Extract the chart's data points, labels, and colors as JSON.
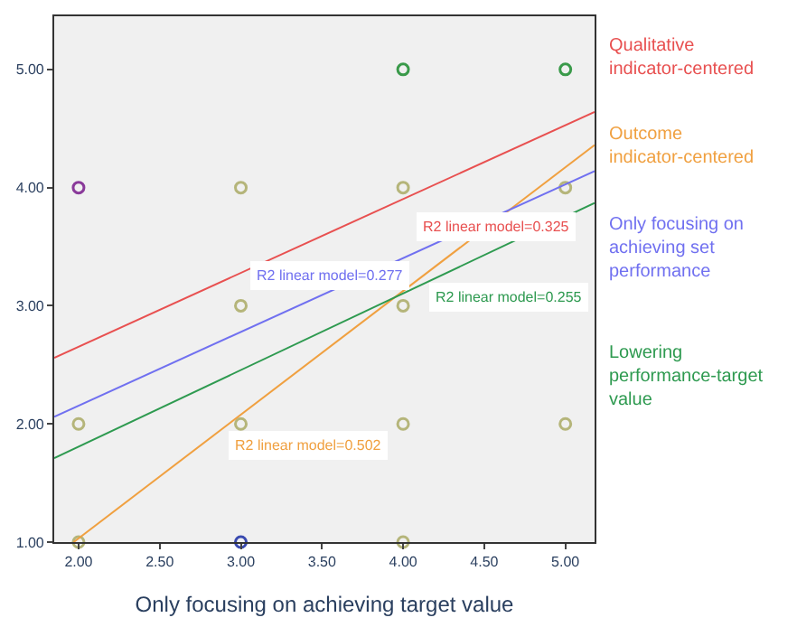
{
  "chart_data": {
    "type": "scatter",
    "xlabel": "Only focusing on achieving target value",
    "xlim": [
      1.85,
      5.18
    ],
    "ylim": [
      1.0,
      5.45
    ],
    "xticks": [
      {
        "value": 2,
        "label": "2.00"
      },
      {
        "value": 2.5,
        "label": "2.50"
      },
      {
        "value": 3,
        "label": "3.00"
      },
      {
        "value": 3.5,
        "label": "3.50"
      },
      {
        "value": 4,
        "label": "4.00"
      },
      {
        "value": 4.5,
        "label": "4.50"
      },
      {
        "value": 5,
        "label": "5.00"
      }
    ],
    "yticks": [
      {
        "value": 1,
        "label": "1.00"
      },
      {
        "value": 2,
        "label": "2.00"
      },
      {
        "value": 3,
        "label": "3.00"
      },
      {
        "value": 4,
        "label": "4.00"
      },
      {
        "value": 5,
        "label": "5.00"
      }
    ],
    "grid": false,
    "legend": "right",
    "series": [
      {
        "marker": "circle",
        "x": [
          2,
          3,
          4,
          5,
          5,
          3,
          4,
          4,
          2,
          3,
          4,
          5,
          2,
          3,
          4
        ],
        "values": [
          4,
          4,
          5,
          5,
          4,
          3,
          3,
          4,
          2,
          2,
          2,
          2,
          1,
          1,
          1
        ],
        "colors": [
          "#8a3a9a",
          "#b5b57a",
          "#3a9a4a",
          "#3a9a4a",
          "#b5b57a",
          "#b5b57a",
          "#b5b57a",
          "#b5b57a",
          "#b5b57a",
          "#b5b57a",
          "#b5b57a",
          "#b5b57a",
          "#b5b57a",
          "#3a4ab0",
          "#b5b57a"
        ]
      },
      {
        "type": "line",
        "name": "Qualitative indicator-centered",
        "color": "#e85050",
        "x": [
          1.85,
          5.18
        ],
        "values": [
          2.56,
          4.64
        ]
      },
      {
        "type": "line",
        "name": "Outcome indicator-centered",
        "color": "#f0a040",
        "x": [
          1.97,
          5.18
        ],
        "values": [
          1.0,
          4.36
        ]
      },
      {
        "type": "line",
        "name": "Only focusing on achieving set performance",
        "color": "#7070f0",
        "x": [
          1.85,
          5.18
        ],
        "values": [
          2.06,
          4.14
        ]
      },
      {
        "type": "line",
        "name": "Lowering performance-target value",
        "color": "#2e9a50",
        "x": [
          1.85,
          5.18
        ],
        "values": [
          1.71,
          3.87
        ]
      }
    ],
    "annotations": [
      "R2 linear model=0.325",
      "R2 linear model=0.502",
      "R2 linear model=0.277",
      "R2 linear model=0.255"
    ]
  }
}
